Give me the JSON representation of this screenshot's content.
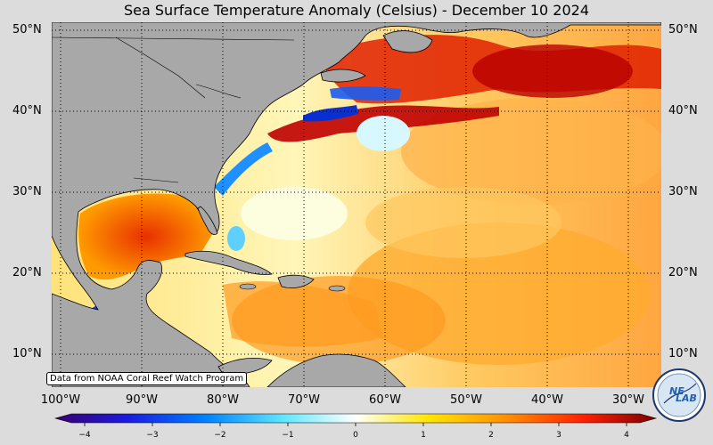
{
  "title": "Sea Surface Temperature Anomaly (Celsius) - December 10 2024",
  "credit": "Data from NOAA Coral Reef Watch Program",
  "logo": {
    "text_top": "NE",
    "text_bottom": "LAB"
  },
  "latitudes": [
    "50°N",
    "40°N",
    "30°N",
    "20°N",
    "10°N"
  ],
  "longitudes": [
    "100°W",
    "90°W",
    "80°W",
    "70°W",
    "60°W",
    "50°W",
    "40°W",
    "30°W"
  ],
  "colorbar": {
    "ticks": [
      "−4",
      "−3",
      "−2",
      "−1",
      "0",
      "1",
      "2",
      "3",
      "4"
    ],
    "range": [
      -4,
      4
    ]
  },
  "colors": {
    "land": "#a8a8a8",
    "background": "#dcdcdc",
    "ocean_neutral": "#fff6b0",
    "warm": "#ff9a00",
    "hot": "#c80000",
    "cool": "#00b4ff",
    "cold": "#0a2fd0"
  }
}
